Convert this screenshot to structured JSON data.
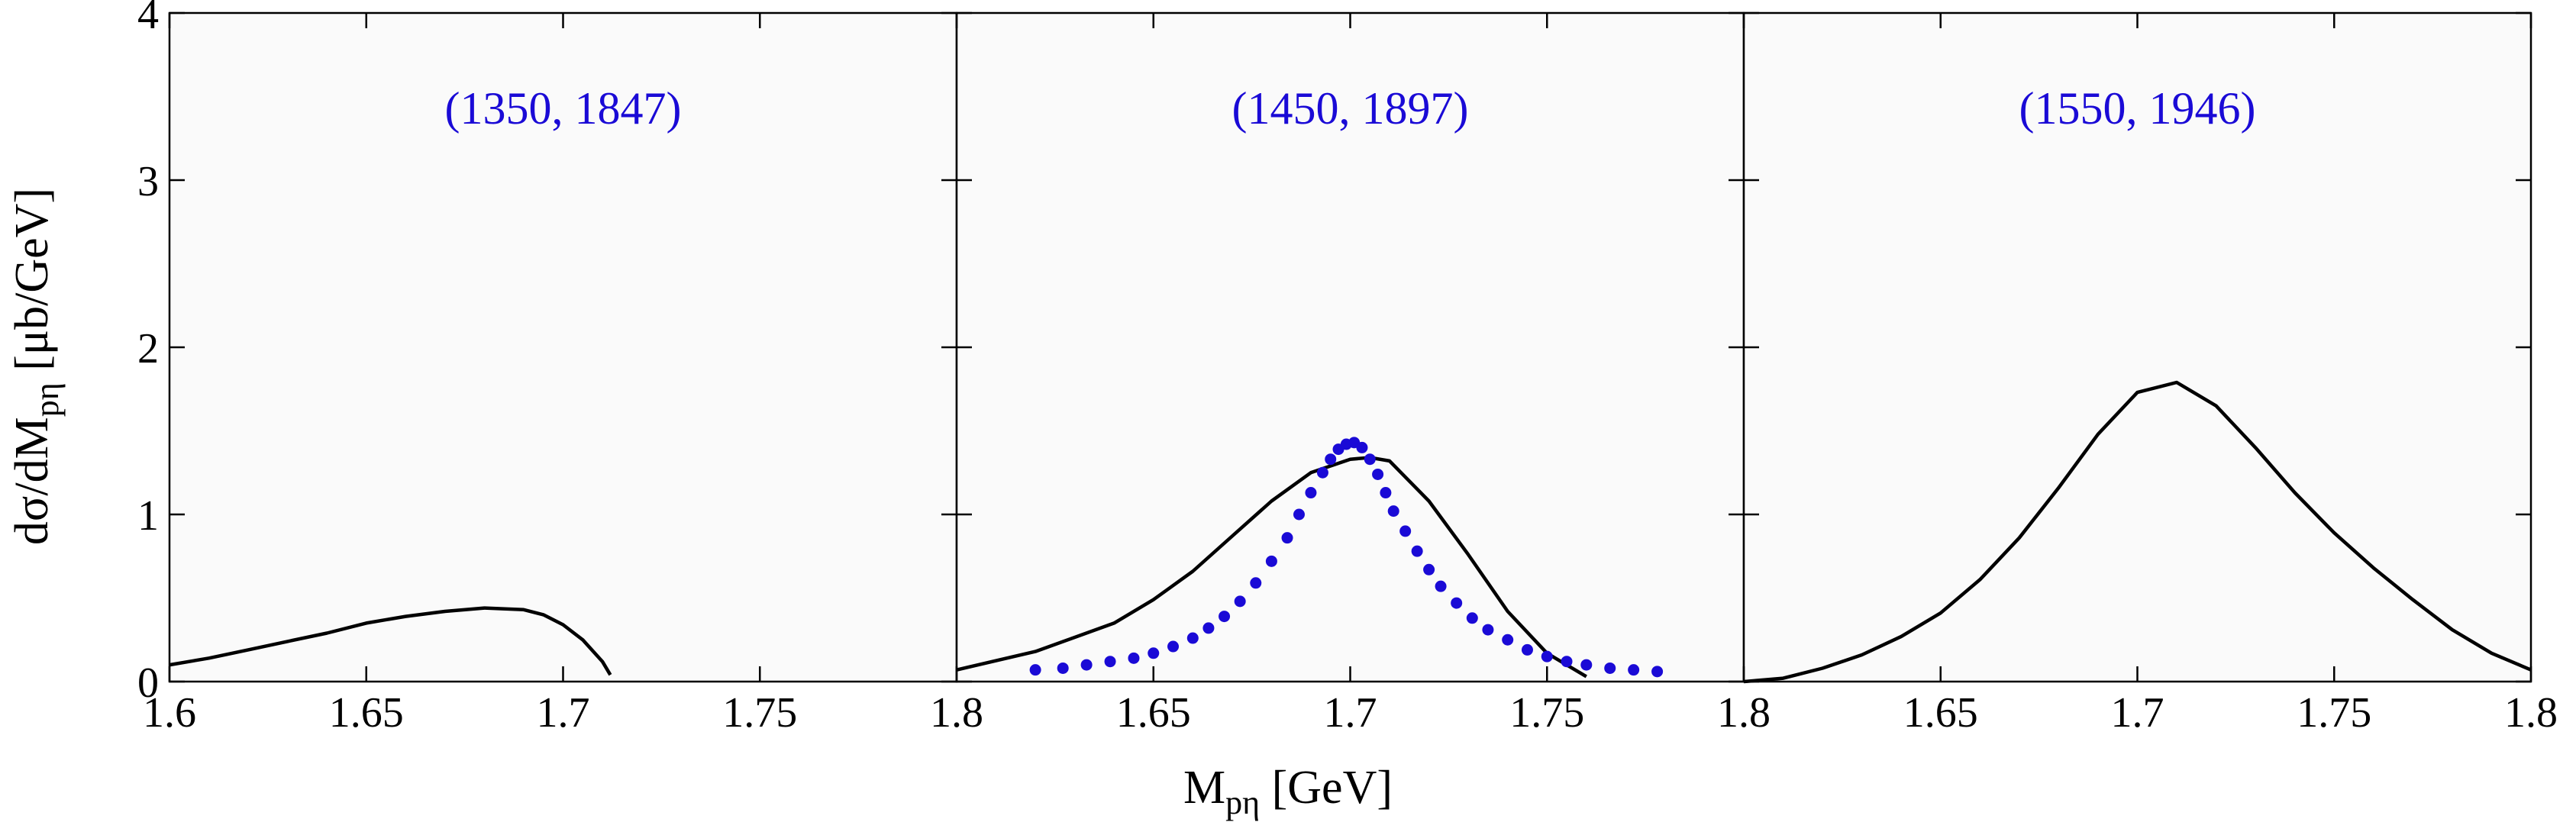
{
  "colors": {
    "label": "#1a0ad6",
    "dots": "#1a0ad6",
    "curve": "#000000"
  },
  "chart_data": {
    "type": "line",
    "xlabel_main": "M",
    "xlabel_sub": "pη",
    "xlabel_unit": " [GeV]",
    "ylabel_main": "dσ/dM",
    "ylabel_sub": "pη",
    "ylabel_unit": " [μb/GeV]",
    "xlim": [
      1.6,
      1.8
    ],
    "ylim": [
      0,
      4
    ],
    "x_tick_labels": [
      [
        "1.6",
        "1.65",
        "1.7",
        "1.75",
        "1.8"
      ],
      [
        "1.65",
        "1.7",
        "1.75",
        "1.8"
      ],
      [
        "1.65",
        "1.7",
        "1.75",
        "1.8"
      ]
    ],
    "y_tick_labels": [
      "0",
      "1",
      "2",
      "3",
      "4"
    ],
    "panels": [
      {
        "label": "(1350, 1847)",
        "curve": {
          "x": [
            1.6,
            1.61,
            1.62,
            1.63,
            1.64,
            1.65,
            1.66,
            1.67,
            1.68,
            1.69,
            1.695,
            1.7,
            1.705,
            1.71,
            1.712
          ],
          "y": [
            0.1,
            0.14,
            0.19,
            0.24,
            0.29,
            0.35,
            0.39,
            0.42,
            0.44,
            0.43,
            0.4,
            0.34,
            0.25,
            0.12,
            0.04
          ]
        },
        "dots": {
          "x": [],
          "y": []
        }
      },
      {
        "label": "(1450, 1897)",
        "curve": {
          "x": [
            1.6,
            1.62,
            1.64,
            1.65,
            1.66,
            1.67,
            1.68,
            1.69,
            1.7,
            1.705,
            1.71,
            1.72,
            1.73,
            1.74,
            1.75,
            1.76
          ],
          "y": [
            0.07,
            0.18,
            0.35,
            0.49,
            0.66,
            0.87,
            1.08,
            1.25,
            1.33,
            1.34,
            1.32,
            1.08,
            0.76,
            0.42,
            0.17,
            0.03
          ]
        },
        "dots": {
          "x": [
            1.62,
            1.627,
            1.633,
            1.639,
            1.645,
            1.65,
            1.655,
            1.66,
            1.664,
            1.668,
            1.672,
            1.676,
            1.68,
            1.684,
            1.687,
            1.69,
            1.693,
            1.695,
            1.697,
            1.699,
            1.701,
            1.703,
            1.705,
            1.707,
            1.709,
            1.711,
            1.714,
            1.717,
            1.72,
            1.723,
            1.727,
            1.731,
            1.735,
            1.74,
            1.745,
            1.75,
            1.755,
            1.76,
            1.766,
            1.772,
            1.778
          ],
          "y": [
            0.07,
            0.08,
            0.1,
            0.12,
            0.14,
            0.17,
            0.21,
            0.26,
            0.32,
            0.39,
            0.48,
            0.59,
            0.72,
            0.86,
            1.0,
            1.13,
            1.25,
            1.33,
            1.39,
            1.42,
            1.43,
            1.4,
            1.33,
            1.24,
            1.13,
            1.02,
            0.9,
            0.78,
            0.67,
            0.57,
            0.47,
            0.38,
            0.31,
            0.25,
            0.19,
            0.15,
            0.12,
            0.1,
            0.08,
            0.07,
            0.06
          ]
        }
      },
      {
        "label": "(1550, 1946)",
        "curve": {
          "x": [
            1.6,
            1.61,
            1.62,
            1.63,
            1.64,
            1.65,
            1.66,
            1.67,
            1.68,
            1.69,
            1.7,
            1.71,
            1.72,
            1.73,
            1.74,
            1.75,
            1.76,
            1.77,
            1.78,
            1.79,
            1.8
          ],
          "y": [
            0.0,
            0.02,
            0.08,
            0.16,
            0.27,
            0.41,
            0.61,
            0.86,
            1.16,
            1.48,
            1.73,
            1.79,
            1.65,
            1.4,
            1.13,
            0.89,
            0.68,
            0.49,
            0.31,
            0.17,
            0.07
          ]
        },
        "dots": {
          "x": [],
          "y": []
        }
      }
    ]
  }
}
